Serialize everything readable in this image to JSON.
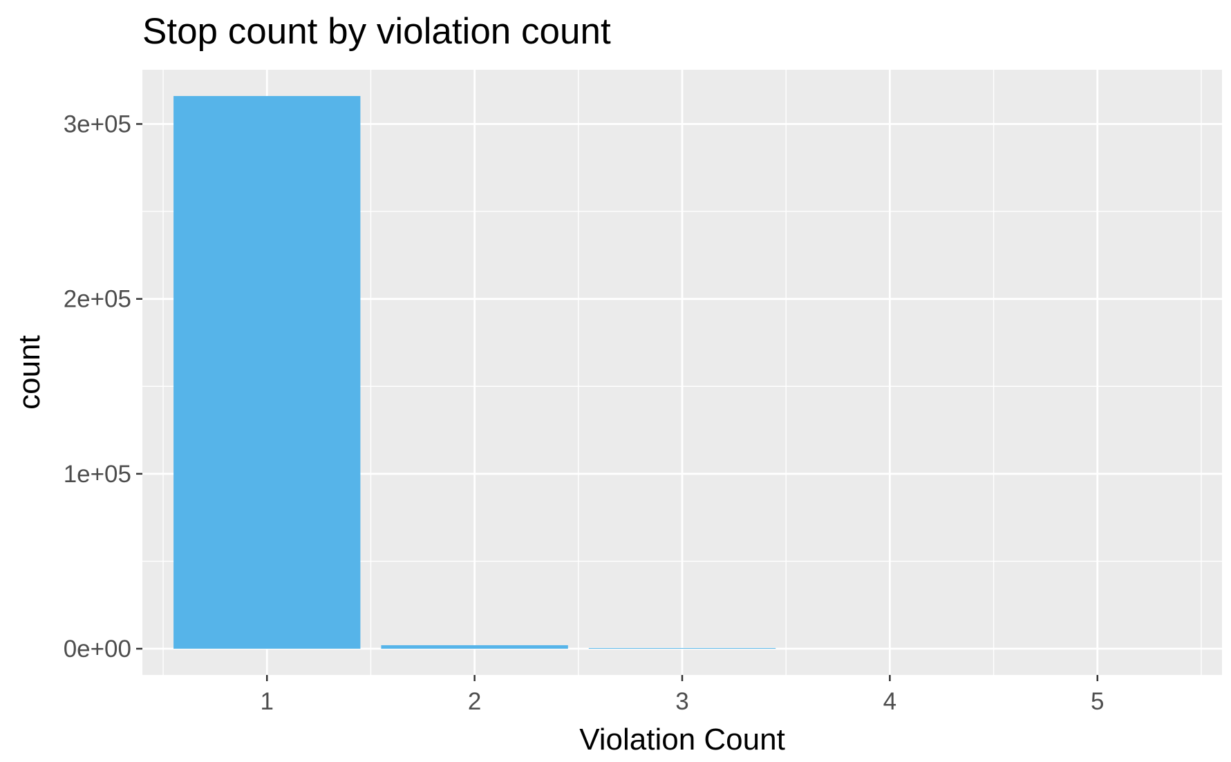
{
  "chart_data": {
    "type": "bar",
    "title": "Stop count by violation count",
    "xlabel": "Violation Count",
    "ylabel": "count",
    "categories": [
      "1",
      "2",
      "3",
      "4",
      "5"
    ],
    "values": [
      316000,
      2000,
      300,
      0,
      0
    ],
    "ylim": [
      -15000,
      331000
    ],
    "xlim": [
      0.4,
      5.6
    ],
    "yticks": [
      0,
      100000,
      200000,
      300000
    ],
    "ytick_labels": [
      "0e+00",
      "1e+05",
      "2e+05",
      "3e+05"
    ],
    "xticks": [
      1,
      2,
      3,
      4,
      5
    ],
    "xtick_labels": [
      "1",
      "2",
      "3",
      "4",
      "5"
    ],
    "grid": true,
    "legend": "none",
    "colors": {
      "bar": "#56B4E9",
      "panel": "#EBEBEB",
      "grid": "#FFFFFF",
      "tick_text": "#4D4D4D",
      "tick_mark": "#333333"
    }
  }
}
